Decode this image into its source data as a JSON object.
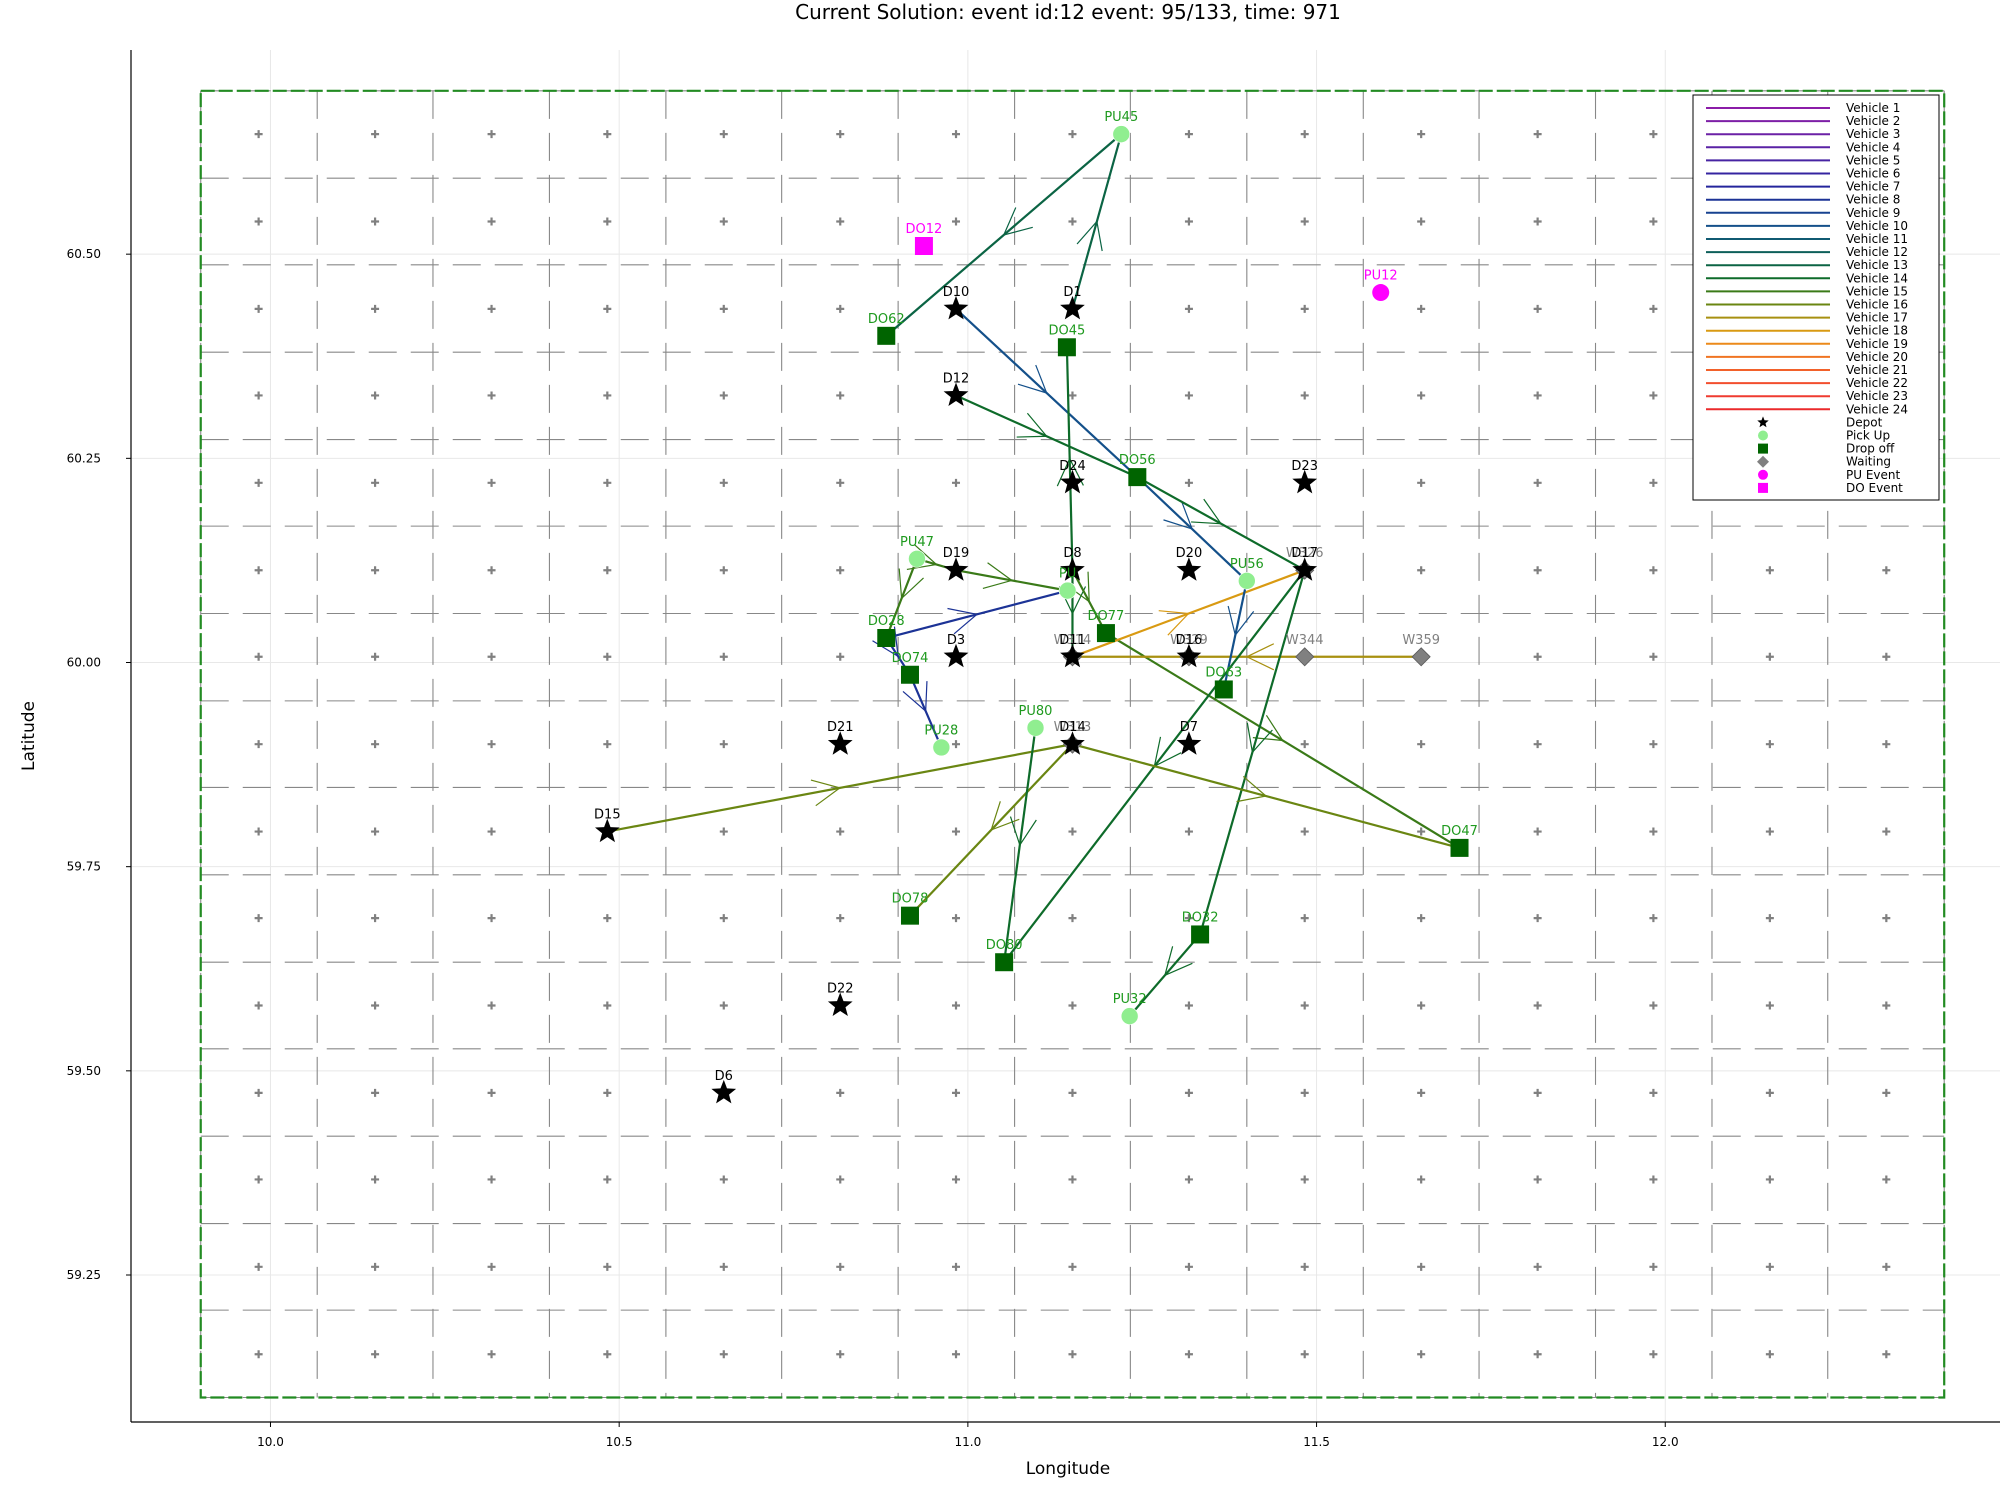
{
  "chart_data": {
    "type": "scatter",
    "title": "Current Solution: event id:12 event: 95/133, time: 971",
    "xlabel": "Longitude",
    "ylabel": "Latitude",
    "xlim": [
      9.8,
      12.48
    ],
    "ylim": [
      59.07,
      60.75
    ],
    "xticks": [
      10.0,
      10.5,
      11.0,
      11.5,
      12.0
    ],
    "xtick_labels": [
      "10.0",
      "10.5",
      "11.0",
      "11.5",
      "12.0"
    ],
    "yticks": [
      59.25,
      59.5,
      59.75,
      60.0,
      60.25,
      60.5
    ],
    "ytick_labels": [
      "59.25",
      "59.50",
      "59.75",
      "60.00",
      "60.25",
      "60.50"
    ],
    "grid": true,
    "legend_position": "top-right",
    "colors": {
      "pickup": "#90ee90",
      "dropoff": "#006400",
      "waiting": "#808080",
      "depot": "#000000",
      "event": "#ff00ff",
      "region_border": "#228b22",
      "cell_marker": "#808080",
      "cell_line": "#888888"
    },
    "region": {
      "x": [
        9.9,
        12.4
      ],
      "y": [
        59.1,
        60.7
      ],
      "cell_columns": [
        9.9,
        10.067,
        10.233,
        10.4,
        10.567,
        10.733,
        10.9,
        11.067,
        11.233,
        11.4,
        11.567,
        11.733,
        11.9,
        12.067,
        12.233,
        12.4
      ],
      "cell_rows": [
        59.1,
        59.207,
        59.313,
        59.42,
        59.527,
        59.633,
        59.74,
        59.847,
        59.953,
        60.06,
        60.167,
        60.273,
        60.38,
        60.487,
        60.593,
        60.7
      ],
      "cell_centers_x": [
        9.983,
        10.15,
        10.317,
        10.483,
        10.65,
        10.817,
        10.983,
        11.15,
        11.317,
        11.483,
        11.65,
        11.817,
        11.983,
        12.15,
        12.317
      ],
      "cell_centers_y": [
        59.153,
        59.26,
        59.367,
        59.473,
        59.58,
        59.687,
        59.793,
        59.9,
        60.007,
        60.113,
        60.22,
        60.327,
        60.433,
        60.54,
        60.647
      ]
    },
    "legend": [
      {
        "label": "Vehicle 1",
        "color": "#8b1ca8",
        "kind": "line"
      },
      {
        "label": "Vehicle 2",
        "color": "#7d1fa6",
        "kind": "line"
      },
      {
        "label": "Vehicle 3",
        "color": "#6c21a6",
        "kind": "line"
      },
      {
        "label": "Vehicle 4",
        "color": "#5a22a5",
        "kind": "line"
      },
      {
        "label": "Vehicle 5",
        "color": "#4724a3",
        "kind": "line"
      },
      {
        "label": "Vehicle 6",
        "color": "#3524a0",
        "kind": "line"
      },
      {
        "label": "Vehicle 7",
        "color": "#24259c",
        "kind": "line"
      },
      {
        "label": "Vehicle 8",
        "color": "#1c3396",
        "kind": "line"
      },
      {
        "label": "Vehicle 9",
        "color": "#174290",
        "kind": "line"
      },
      {
        "label": "Vehicle 10",
        "color": "#14508a",
        "kind": "line"
      },
      {
        "label": "Vehicle 11",
        "color": "#105a72",
        "kind": "line"
      },
      {
        "label": "Vehicle 12",
        "color": "#0d5f5a",
        "kind": "line"
      },
      {
        "label": "Vehicle 13",
        "color": "#0b6444",
        "kind": "line"
      },
      {
        "label": "Vehicle 14",
        "color": "#0e6b2a",
        "kind": "line"
      },
      {
        "label": "Vehicle 15",
        "color": "#3a7a18",
        "kind": "line"
      },
      {
        "label": "Vehicle 16",
        "color": "#6a8612",
        "kind": "line"
      },
      {
        "label": "Vehicle 17",
        "color": "#a89010",
        "kind": "line"
      },
      {
        "label": "Vehicle 18",
        "color": "#d99a12",
        "kind": "line"
      },
      {
        "label": "Vehicle 19",
        "color": "#ec8a1a",
        "kind": "line"
      },
      {
        "label": "Vehicle 20",
        "color": "#f07422",
        "kind": "line"
      },
      {
        "label": "Vehicle 21",
        "color": "#f2612a",
        "kind": "line"
      },
      {
        "label": "Vehicle 22",
        "color": "#f24e2e",
        "kind": "line"
      },
      {
        "label": "Vehicle 23",
        "color": "#ef3b30",
        "kind": "line"
      },
      {
        "label": "Vehicle 24",
        "color": "#eb2a2c",
        "kind": "line"
      },
      {
        "label": "Depot",
        "color": "#000000",
        "kind": "star"
      },
      {
        "label": "Pick Up",
        "color": "#90ee90",
        "kind": "circle"
      },
      {
        "label": "Drop off",
        "color": "#006400",
        "kind": "square"
      },
      {
        "label": "Waiting",
        "color": "#808080",
        "kind": "diamond"
      },
      {
        "label": "PU Event",
        "color": "#ff00ff",
        "kind": "circle"
      },
      {
        "label": "DO Event",
        "color": "#ff00ff",
        "kind": "square"
      }
    ],
    "depots": [
      {
        "label": "D1",
        "x": 11.15,
        "y": 60.433
      },
      {
        "label": "D10",
        "x": 10.983,
        "y": 60.433
      },
      {
        "label": "D12",
        "x": 10.983,
        "y": 60.327
      },
      {
        "label": "D24",
        "x": 11.15,
        "y": 60.22
      },
      {
        "label": "D23",
        "x": 11.483,
        "y": 60.22
      },
      {
        "label": "D19",
        "x": 10.983,
        "y": 60.113
      },
      {
        "label": "D8",
        "x": 11.15,
        "y": 60.113
      },
      {
        "label": "D20",
        "x": 11.317,
        "y": 60.113
      },
      {
        "label": "D17",
        "x": 11.483,
        "y": 60.113
      },
      {
        "label": "D3",
        "x": 10.983,
        "y": 60.007
      },
      {
        "label": "D11",
        "x": 11.15,
        "y": 60.007
      },
      {
        "label": "D16",
        "x": 11.317,
        "y": 60.007
      },
      {
        "label": "D21",
        "x": 10.817,
        "y": 59.9
      },
      {
        "label": "D14",
        "x": 11.15,
        "y": 59.9
      },
      {
        "label": "D7",
        "x": 11.317,
        "y": 59.9
      },
      {
        "label": "D15",
        "x": 10.483,
        "y": 59.793
      },
      {
        "label": "D22",
        "x": 10.817,
        "y": 59.58
      },
      {
        "label": "D6",
        "x": 10.65,
        "y": 59.473
      }
    ],
    "pickups": [
      {
        "label": "PU45",
        "x": 11.22,
        "y": 60.647
      },
      {
        "label": "PU47",
        "x": 10.927,
        "y": 60.127
      },
      {
        "label": "PU56",
        "x": 11.4,
        "y": 60.1
      },
      {
        "label": "PU",
        "x": 11.143,
        "y": 60.088
      },
      {
        "label": "PU28",
        "x": 10.962,
        "y": 59.896
      },
      {
        "label": "PU80",
        "x": 11.097,
        "y": 59.92
      },
      {
        "label": "PU32",
        "x": 11.232,
        "y": 59.567
      }
    ],
    "dropoffs": [
      {
        "label": "DO62",
        "x": 10.883,
        "y": 60.4
      },
      {
        "label": "DO45",
        "x": 11.142,
        "y": 60.386
      },
      {
        "label": "DO56",
        "x": 11.243,
        "y": 60.227
      },
      {
        "label": "DO77",
        "x": 11.198,
        "y": 60.036
      },
      {
        "label": "DO28",
        "x": 10.883,
        "y": 60.03
      },
      {
        "label": "DO74",
        "x": 10.917,
        "y": 59.985
      },
      {
        "label": "DO63",
        "x": 11.367,
        "y": 59.967
      },
      {
        "label": "DO47",
        "x": 11.705,
        "y": 59.773
      },
      {
        "label": "DO78",
        "x": 10.917,
        "y": 59.69
      },
      {
        "label": "DO80",
        "x": 11.052,
        "y": 59.633
      },
      {
        "label": "DO32",
        "x": 11.333,
        "y": 59.667
      }
    ],
    "waiting": [
      {
        "label": "W314",
        "x": 11.15,
        "y": 60.007
      },
      {
        "label": "W329",
        "x": 11.317,
        "y": 60.007
      },
      {
        "label": "W344",
        "x": 11.483,
        "y": 60.007
      },
      {
        "label": "W359",
        "x": 11.65,
        "y": 60.007
      },
      {
        "label": "W313",
        "x": 11.15,
        "y": 59.9
      },
      {
        "label": "W326",
        "x": 11.483,
        "y": 60.113
      }
    ],
    "events": [
      {
        "label": "PU12",
        "x": 11.592,
        "y": 60.453,
        "kind": "circle"
      },
      {
        "label": "DO12",
        "x": 10.937,
        "y": 60.51,
        "kind": "square"
      }
    ],
    "routes": [
      {
        "color": "#0b6444",
        "points": [
          [
            11.15,
            60.433
          ],
          [
            11.22,
            60.647
          ],
          [
            10.883,
            60.4
          ]
        ]
      },
      {
        "color": "#14508a",
        "points": [
          [
            10.983,
            60.433
          ],
          [
            11.243,
            60.227
          ],
          [
            11.4,
            60.1
          ]
        ]
      },
      {
        "color": "#0e6b2a",
        "points": [
          [
            10.983,
            60.327
          ],
          [
            11.243,
            60.227
          ],
          [
            11.483,
            60.113
          ]
        ]
      },
      {
        "color": "#0e6b2a",
        "points": [
          [
            11.15,
            60.113
          ],
          [
            11.142,
            60.386
          ]
        ]
      },
      {
        "color": "#0e6b2a",
        "points": [
          [
            11.15,
            60.113
          ],
          [
            11.15,
            60.007
          ]
        ]
      },
      {
        "color": "#3a7a18",
        "points": [
          [
            10.983,
            60.113
          ],
          [
            11.143,
            60.088
          ]
        ]
      },
      {
        "color": "#3a7a18",
        "points": [
          [
            10.927,
            60.127
          ],
          [
            10.883,
            60.03
          ]
        ]
      },
      {
        "color": "#3a7a18",
        "points": [
          [
            10.927,
            60.127
          ],
          [
            10.983,
            60.113
          ]
        ]
      },
      {
        "color": "#1c3396",
        "points": [
          [
            10.883,
            60.03
          ],
          [
            11.143,
            60.088
          ]
        ]
      },
      {
        "color": "#1c3396",
        "points": [
          [
            10.883,
            60.03
          ],
          [
            10.917,
            59.985
          ],
          [
            10.962,
            59.896
          ]
        ]
      },
      {
        "color": "#3a7a18",
        "points": [
          [
            11.15,
            60.113
          ],
          [
            11.198,
            60.036
          ],
          [
            11.705,
            59.773
          ]
        ]
      },
      {
        "color": "#d99a12",
        "points": [
          [
            11.15,
            60.007
          ],
          [
            11.483,
            60.113
          ]
        ]
      },
      {
        "color": "#a89010",
        "points": [
          [
            11.65,
            60.007
          ],
          [
            11.15,
            60.007
          ]
        ]
      },
      {
        "color": "#14508a",
        "points": [
          [
            11.4,
            60.1
          ],
          [
            11.367,
            59.967
          ]
        ]
      },
      {
        "color": "#0e6b2a",
        "points": [
          [
            11.483,
            60.113
          ],
          [
            11.333,
            59.667
          ],
          [
            11.232,
            59.567
          ]
        ]
      },
      {
        "color": "#0e6b2a",
        "points": [
          [
            11.483,
            60.113
          ],
          [
            11.052,
            59.633
          ]
        ]
      },
      {
        "color": "#6a8612",
        "points": [
          [
            10.483,
            59.793
          ],
          [
            11.15,
            59.9
          ],
          [
            11.705,
            59.773
          ]
        ]
      },
      {
        "color": "#6a8612",
        "points": [
          [
            11.15,
            59.9
          ],
          [
            10.917,
            59.69
          ]
        ]
      },
      {
        "color": "#0e6b2a",
        "points": [
          [
            11.097,
            59.92
          ],
          [
            11.052,
            59.633
          ]
        ]
      }
    ]
  }
}
